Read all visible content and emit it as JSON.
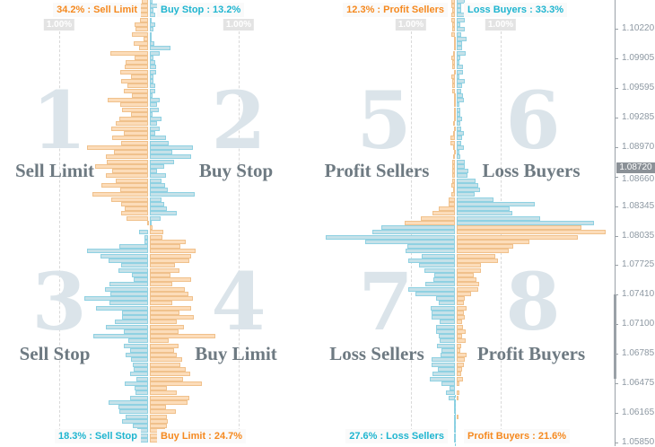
{
  "colors": {
    "sell_side_orange": "#f5891f",
    "buy_side_cyan": "#1fb5d0",
    "bar_orange": "#fcdcb9",
    "bar_blue": "#c5e1e9",
    "numeral": "#dbe4ea",
    "label": "#6e7a82"
  },
  "quadrants": {
    "q1": {
      "number": "1",
      "label": "Sell Limit"
    },
    "q2": {
      "number": "2",
      "label": "Buy Stop"
    },
    "q3": {
      "number": "3",
      "label": "Sell Stop"
    },
    "q4": {
      "number": "4",
      "label": "Buy Limit"
    },
    "q5": {
      "number": "5",
      "label": "Profit Sellers"
    },
    "q6": {
      "number": "6",
      "label": "Loss Buyers"
    },
    "q7": {
      "number": "7",
      "label": "Loss Sellers"
    },
    "q8": {
      "number": "8",
      "label": "Profit Buyers"
    }
  },
  "summary": {
    "sell_limit": "34.2% : Sell Limit",
    "buy_stop": "Buy Stop : 13.2%",
    "sell_stop": "18.3% : Sell Stop",
    "buy_limit": "Buy Limit : 24.7%",
    "profit_sellers": "12.3% : Profit Sellers",
    "loss_buyers": "Loss Buyers : 33.3%",
    "loss_sellers": "27.6% : Loss Sellers",
    "profit_buyers": "Profit Buyers : 21.6%"
  },
  "scale_marker": "1.00%",
  "price_axis": {
    "ticks": [
      "1.10220",
      "1.09905",
      "1.09595",
      "1.09285",
      "1.08970",
      "1.08660",
      "1.08345",
      "1.08035",
      "1.07725",
      "1.07410",
      "1.07100",
      "1.06785",
      "1.06475",
      "1.06165",
      "1.05850"
    ],
    "current_price": "1.08720"
  },
  "chart_data": [
    {
      "type": "bar",
      "orientation": "horizontal",
      "name": "orderbook",
      "unit": "%",
      "scale_marker": 1.0,
      "rows_order": "top-to-bottom by price",
      "upper_left": {
        "name": "Sell Limit",
        "values": [
          0.07,
          0.09,
          0.09,
          0.09,
          0.09,
          0.15,
          0.14,
          0.18,
          0.05,
          0.16,
          0.1,
          0.42,
          0.15,
          0.25,
          0.26,
          0.31,
          0.19,
          0.3,
          0.23,
          0.27,
          0.18,
          0.45,
          0.31,
          0.29,
          0.19,
          0.32,
          0.36,
          0.41,
          0.27,
          0.4,
          0.3,
          0.68,
          0.38,
          0.47,
          0.46,
          0.59,
          0.4,
          0.47,
          0.36,
          0.52,
          0.31,
          0.62,
          0.41,
          0.3,
          0.26,
          0.3,
          0.24,
          0.01
        ]
      },
      "upper_right": {
        "name": "Buy Stop",
        "values": [
          0.03,
          0.09,
          0.04,
          0.06,
          0.01,
          0.06,
          0.04,
          0.02,
          0.02,
          0.05,
          0.23,
          0.11,
          0.04,
          0.06,
          0.07,
          0.07,
          0.04,
          0.04,
          0.06,
          0.06,
          0.03,
          0.11,
          0.08,
          0.1,
          0.03,
          0.13,
          0.08,
          0.11,
          0.06,
          0.18,
          0.21,
          0.48,
          0.25,
          0.46,
          0.27,
          0.16,
          0.08,
          0.18,
          0.13,
          0.17,
          0.2,
          0.5,
          0.13,
          0.16,
          0.19,
          0.3,
          0.12,
          0.01
        ]
      },
      "lower_left": {
        "name": "Sell Stop",
        "values": [
          0,
          0.1,
          0.04,
          0.04,
          0.32,
          0.68,
          0.53,
          0.44,
          0.3,
          0.33,
          0.18,
          0.16,
          0.43,
          0.48,
          0.42,
          0.71,
          0.43,
          0.58,
          0.29,
          0.29,
          0.37,
          0.47,
          0.27,
          0.61,
          0.22,
          0.27,
          0.2,
          0.25,
          0.19,
          0.17,
          0.16,
          0.2,
          0.13,
          0.26,
          0.15,
          0.14,
          0.2,
          0.44,
          0.33,
          0.32,
          0.25,
          0.29,
          0.17,
          0.12,
          0.09,
          0.16
        ]
      },
      "lower_right": {
        "name": "Buy Limit",
        "values": [
          0.03,
          0.15,
          0.14,
          0.4,
          0.34,
          0.51,
          0.46,
          0.44,
          0.28,
          0.33,
          0.23,
          0.46,
          0.25,
          0.39,
          0.43,
          0.48,
          0.25,
          0.46,
          0.33,
          0.49,
          0.3,
          0.38,
          0.32,
          0.73,
          0.21,
          0.32,
          0.27,
          0.3,
          0.36,
          0.34,
          0.4,
          0.45,
          0.37,
          0.58,
          0.19,
          0.3,
          0.44,
          0.42,
          0.18,
          0.29,
          0.19,
          0.2,
          0.19,
          0.17,
          0.16,
          0.16
        ]
      }
    },
    {
      "type": "bar",
      "orientation": "horizontal",
      "name": "positionbook",
      "unit": "%",
      "scale_marker": 1.0,
      "rows_order": "top-to-bottom by price",
      "upper_left": {
        "name": "Profit Sellers",
        "values": [
          0.07,
          0.07,
          0.06,
          0.07,
          0.07,
          0.05,
          0.06,
          0.07,
          0.02,
          0.02,
          0.02,
          0.03,
          0.07,
          0.06,
          0.05,
          0.02,
          0.07,
          0.06,
          0.06,
          0.06,
          0.02,
          0.02,
          0.01,
          0.01,
          0.01,
          0.02,
          0.03,
          0.02,
          0.03,
          0.1,
          0.1,
          0.03,
          0.01,
          0.03,
          0.05,
          0.06,
          0.06,
          0.06,
          0.06,
          0.07,
          0.03,
          0.07,
          0.14,
          0.14,
          0.36,
          0.5,
          0.76,
          1.12
        ]
      },
      "upper_right": {
        "name": "Loss Buyers",
        "values": [
          0.18,
          0.11,
          0.11,
          0.18,
          0.19,
          0.08,
          0.18,
          0.1,
          0.23,
          0.13,
          0.13,
          0.21,
          0.09,
          0.06,
          0.14,
          0.14,
          0.07,
          0.18,
          0.13,
          0.1,
          0.15,
          0.16,
          0.06,
          0.08,
          0.09,
          0.13,
          0.09,
          0.1,
          0.16,
          0.12,
          0.11,
          0.16,
          0.07,
          0.09,
          0.19,
          0.19,
          0.27,
          0.25,
          0.43,
          0.49,
          0.53,
          0.41,
          0.82,
          1.74,
          1.18,
          1.24,
          1.86,
          3.06
        ]
      },
      "lower_left": {
        "name": "Loss Sellers",
        "values": [
          1.64,
          1.84,
          2.88,
          2.0,
          1.06,
          1.1,
          0.74,
          1.04,
          0.8,
          0.68,
          0.46,
          0.48,
          0.66,
          1.04,
          0.88,
          0.42,
          0.36,
          0.54,
          0.52,
          0.52,
          0.34,
          0.42,
          0.42,
          0.36,
          0.34,
          0.4,
          0.3,
          0.32,
          0.52,
          0.52,
          0.38,
          0.5,
          0.56,
          0.3,
          0.12,
          0.2,
          0.14,
          0.02,
          0.01,
          0.01,
          0.01,
          0.01,
          0.01,
          0.01,
          0.01,
          0.01
        ]
      },
      "lower_right": {
        "name": "Profit Buyers",
        "values": [
          2.78,
          3.32,
          2.7,
          1.62,
          1.26,
          1.16,
          0.86,
          0.92,
          0.54,
          0.54,
          0.38,
          0.44,
          0.5,
          0.48,
          0.32,
          0.18,
          0.16,
          0.22,
          0.16,
          0.18,
          0.12,
          0.14,
          0.2,
          0.12,
          0.2,
          0.1,
          0.08,
          0.22,
          0.18,
          0.16,
          0.12,
          0.1,
          0.14,
          0.06,
          0,
          0.06,
          0.02,
          0,
          0,
          0,
          0.02,
          0,
          0,
          0,
          0,
          0
        ]
      }
    }
  ]
}
